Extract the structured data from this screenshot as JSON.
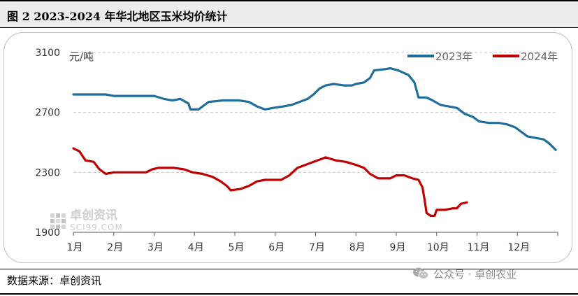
{
  "figure": {
    "title": "图 2 2023-2024 年华北地区玉米均价统计",
    "source": "数据来源：卓创资讯",
    "watermark": {
      "name": "卓创资讯",
      "domain": "SCI99.COM"
    },
    "wechat": {
      "text": "公众号 · 卓创农业",
      "icon": "wechat-icon"
    }
  },
  "chart_data": {
    "type": "line",
    "unit_label": "元/吨",
    "ylim": [
      1900,
      3100
    ],
    "yticks": [
      1900,
      2300,
      2700,
      3100
    ],
    "months": [
      "1月",
      "2月",
      "3月",
      "4月",
      "5月",
      "6月",
      "7月",
      "8月",
      "9月",
      "10月",
      "11月",
      "12月"
    ],
    "grid": true,
    "legend_position": "top-right",
    "series": [
      {
        "name": "2023年",
        "color": "#1f6e9c",
        "points": [
          [
            1.0,
            2820
          ],
          [
            1.8,
            2820
          ],
          [
            2.0,
            2810
          ],
          [
            3.0,
            2810
          ],
          [
            3.25,
            2790
          ],
          [
            3.45,
            2780
          ],
          [
            3.65,
            2790
          ],
          [
            3.85,
            2760
          ],
          [
            3.9,
            2720
          ],
          [
            4.1,
            2720
          ],
          [
            4.35,
            2770
          ],
          [
            4.7,
            2780
          ],
          [
            5.1,
            2780
          ],
          [
            5.35,
            2770
          ],
          [
            5.55,
            2740
          ],
          [
            5.75,
            2720
          ],
          [
            5.95,
            2730
          ],
          [
            6.2,
            2740
          ],
          [
            6.4,
            2750
          ],
          [
            6.6,
            2770
          ],
          [
            6.8,
            2790
          ],
          [
            6.95,
            2820
          ],
          [
            7.1,
            2860
          ],
          [
            7.25,
            2880
          ],
          [
            7.45,
            2890
          ],
          [
            7.7,
            2880
          ],
          [
            7.9,
            2880
          ],
          [
            8.0,
            2890
          ],
          [
            8.2,
            2900
          ],
          [
            8.35,
            2930
          ],
          [
            8.45,
            2980
          ],
          [
            8.75,
            2990
          ],
          [
            8.85,
            2995
          ],
          [
            9.05,
            2980
          ],
          [
            9.3,
            2950
          ],
          [
            9.45,
            2900
          ],
          [
            9.55,
            2800
          ],
          [
            9.75,
            2800
          ],
          [
            9.9,
            2780
          ],
          [
            10.1,
            2750
          ],
          [
            10.3,
            2740
          ],
          [
            10.5,
            2730
          ],
          [
            10.7,
            2690
          ],
          [
            10.9,
            2670
          ],
          [
            11.05,
            2640
          ],
          [
            11.3,
            2630
          ],
          [
            11.55,
            2630
          ],
          [
            11.75,
            2620
          ],
          [
            11.95,
            2600
          ],
          [
            12.1,
            2570
          ],
          [
            12.25,
            2540
          ],
          [
            12.45,
            2530
          ],
          [
            12.65,
            2520
          ],
          [
            12.8,
            2490
          ],
          [
            12.95,
            2450
          ]
        ]
      },
      {
        "name": "2024年",
        "color": "#c00000",
        "points": [
          [
            1.0,
            2460
          ],
          [
            1.15,
            2440
          ],
          [
            1.3,
            2380
          ],
          [
            1.5,
            2370
          ],
          [
            1.65,
            2320
          ],
          [
            1.8,
            2290
          ],
          [
            2.0,
            2300
          ],
          [
            2.5,
            2300
          ],
          [
            2.8,
            2300
          ],
          [
            2.95,
            2320
          ],
          [
            3.1,
            2330
          ],
          [
            3.5,
            2330
          ],
          [
            3.75,
            2320
          ],
          [
            3.95,
            2300
          ],
          [
            4.2,
            2290
          ],
          [
            4.45,
            2270
          ],
          [
            4.65,
            2240
          ],
          [
            4.8,
            2210
          ],
          [
            4.9,
            2180
          ],
          [
            5.15,
            2190
          ],
          [
            5.35,
            2210
          ],
          [
            5.55,
            2240
          ],
          [
            5.75,
            2250
          ],
          [
            6.0,
            2250
          ],
          [
            6.15,
            2250
          ],
          [
            6.35,
            2280
          ],
          [
            6.55,
            2330
          ],
          [
            6.75,
            2350
          ],
          [
            6.95,
            2370
          ],
          [
            7.15,
            2390
          ],
          [
            7.25,
            2400
          ],
          [
            7.5,
            2380
          ],
          [
            7.75,
            2370
          ],
          [
            8.0,
            2350
          ],
          [
            8.2,
            2330
          ],
          [
            8.35,
            2290
          ],
          [
            8.55,
            2260
          ],
          [
            8.85,
            2260
          ],
          [
            9.0,
            2280
          ],
          [
            9.2,
            2280
          ],
          [
            9.4,
            2260
          ],
          [
            9.55,
            2250
          ],
          [
            9.65,
            2200
          ],
          [
            9.7,
            2120
          ],
          [
            9.75,
            2030
          ],
          [
            9.85,
            2010
          ],
          [
            9.95,
            2010
          ],
          [
            10.0,
            2050
          ],
          [
            10.2,
            2050
          ],
          [
            10.4,
            2060
          ],
          [
            10.5,
            2060
          ],
          [
            10.6,
            2090
          ],
          [
            10.75,
            2100
          ]
        ]
      }
    ]
  }
}
